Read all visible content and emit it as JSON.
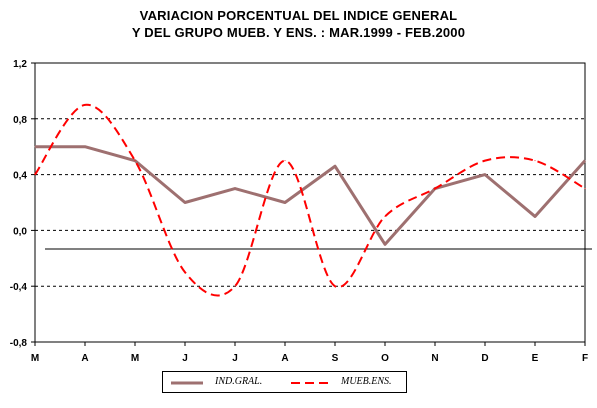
{
  "chart_data": {
    "type": "line",
    "title_line1": "VARIACION PORCENTUAL DEL INDICE GENERAL",
    "title_line2": "Y DEL GRUPO MUEB. Y ENS. : MAR.1999 - FEB.2000",
    "categories": [
      "M",
      "A",
      "M",
      "J",
      "J",
      "A",
      "S",
      "O",
      "N",
      "D",
      "E",
      "F"
    ],
    "y_ticks": [
      "1,2",
      "0,8",
      "0,4",
      "0,0",
      "-0,4",
      "-0,8"
    ],
    "ylim": [
      -0.8,
      1.2
    ],
    "y_tick_values": [
      1.2,
      0.8,
      0.4,
      0.0,
      -0.4,
      -0.8
    ],
    "gridlines": "dashed horizontal",
    "legend_position": "bottom",
    "series": [
      {
        "name": "IND.GRAL.",
        "color": "#9e7070",
        "style": "solid",
        "values": [
          0.6,
          0.6,
          0.5,
          0.2,
          0.3,
          0.2,
          0.46,
          -0.1,
          0.3,
          0.4,
          0.1,
          0.5
        ]
      },
      {
        "name": "MUEB.ENS.",
        "color": "#ff0000",
        "style": "dashed",
        "values": [
          0.4,
          0.9,
          0.5,
          -0.3,
          -0.4,
          0.5,
          -0.4,
          0.1,
          0.3,
          0.5,
          0.5,
          0.3
        ]
      }
    ]
  }
}
